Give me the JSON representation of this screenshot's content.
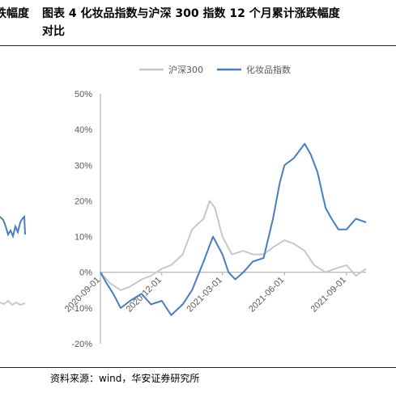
{
  "header": {
    "left_fragment": "跌幅度",
    "title_line1": "图表 4 化妆品指数与沪深 300 指数 12 个月累计涨跌幅度",
    "title_line2": "对比"
  },
  "footer": {
    "source": "资料来源：wind，华安证券研究所"
  },
  "colors": {
    "hs300": "#c8c8c8",
    "cosmetics": "#4a7ebb",
    "axis": "#a6a6a6",
    "text": "#595959"
  },
  "chart_data": {
    "type": "line",
    "title": "",
    "xlabel": "",
    "ylabel": "",
    "ylim": [
      -0.2,
      0.5
    ],
    "y_ticks": [
      "50%",
      "40%",
      "30%",
      "20%",
      "10%",
      "0%",
      "-10%",
      "-20%"
    ],
    "x_ticks": [
      "2020-09-01",
      "2020-12-01",
      "2021-03-01",
      "2021-06-01",
      "2021-09-01"
    ],
    "x_range": [
      "2020-09-01",
      "2021-09-30"
    ],
    "legend": {
      "position": "top",
      "entries": [
        "沪深300",
        "化妆品指数"
      ]
    },
    "series": [
      {
        "name": "沪深300",
        "color": "#c8c8c8",
        "points": [
          [
            "2020-09-01",
            0.0
          ],
          [
            "2020-09-15",
            -0.03
          ],
          [
            "2020-10-01",
            -0.05
          ],
          [
            "2020-10-15",
            -0.04
          ],
          [
            "2020-11-01",
            -0.02
          ],
          [
            "2020-11-15",
            -0.01
          ],
          [
            "2020-12-01",
            0.01
          ],
          [
            "2020-12-15",
            0.02
          ],
          [
            "2021-01-01",
            0.05
          ],
          [
            "2021-01-15",
            0.12
          ],
          [
            "2021-02-01",
            0.15
          ],
          [
            "2021-02-10",
            0.2
          ],
          [
            "2021-02-18",
            0.18
          ],
          [
            "2021-03-01",
            0.1
          ],
          [
            "2021-03-15",
            0.05
          ],
          [
            "2021-04-01",
            0.06
          ],
          [
            "2021-04-15",
            0.05
          ],
          [
            "2021-05-01",
            0.05
          ],
          [
            "2021-05-15",
            0.07
          ],
          [
            "2021-06-01",
            0.09
          ],
          [
            "2021-06-15",
            0.08
          ],
          [
            "2021-07-01",
            0.06
          ],
          [
            "2021-07-15",
            0.02
          ],
          [
            "2021-08-01",
            0.0
          ],
          [
            "2021-08-15",
            0.01
          ],
          [
            "2021-09-01",
            0.02
          ],
          [
            "2021-09-15",
            -0.01
          ],
          [
            "2021-09-30",
            0.01
          ]
        ]
      },
      {
        "name": "化妆品指数",
        "color": "#4a7ebb",
        "points": [
          [
            "2020-09-01",
            0.0
          ],
          [
            "2020-09-10",
            -0.03
          ],
          [
            "2020-09-20",
            -0.06
          ],
          [
            "2020-10-01",
            -0.1
          ],
          [
            "2020-10-15",
            -0.08
          ],
          [
            "2020-11-01",
            -0.06
          ],
          [
            "2020-11-15",
            -0.09
          ],
          [
            "2020-12-01",
            -0.08
          ],
          [
            "2020-12-15",
            -0.12
          ],
          [
            "2021-01-01",
            -0.09
          ],
          [
            "2021-01-15",
            -0.05
          ],
          [
            "2021-02-01",
            0.03
          ],
          [
            "2021-02-15",
            0.1
          ],
          [
            "2021-03-01",
            0.05
          ],
          [
            "2021-03-10",
            0.0
          ],
          [
            "2021-03-20",
            -0.02
          ],
          [
            "2021-04-01",
            0.0
          ],
          [
            "2021-04-15",
            0.03
          ],
          [
            "2021-05-01",
            0.04
          ],
          [
            "2021-05-15",
            0.15
          ],
          [
            "2021-05-25",
            0.25
          ],
          [
            "2021-06-01",
            0.3
          ],
          [
            "2021-06-15",
            0.32
          ],
          [
            "2021-07-01",
            0.36
          ],
          [
            "2021-07-10",
            0.33
          ],
          [
            "2021-07-20",
            0.28
          ],
          [
            "2021-08-01",
            0.18
          ],
          [
            "2021-08-10",
            0.15
          ],
          [
            "2021-08-20",
            0.12
          ],
          [
            "2021-09-01",
            0.12
          ],
          [
            "2021-09-15",
            0.15
          ],
          [
            "2021-09-30",
            0.14
          ]
        ]
      }
    ]
  }
}
